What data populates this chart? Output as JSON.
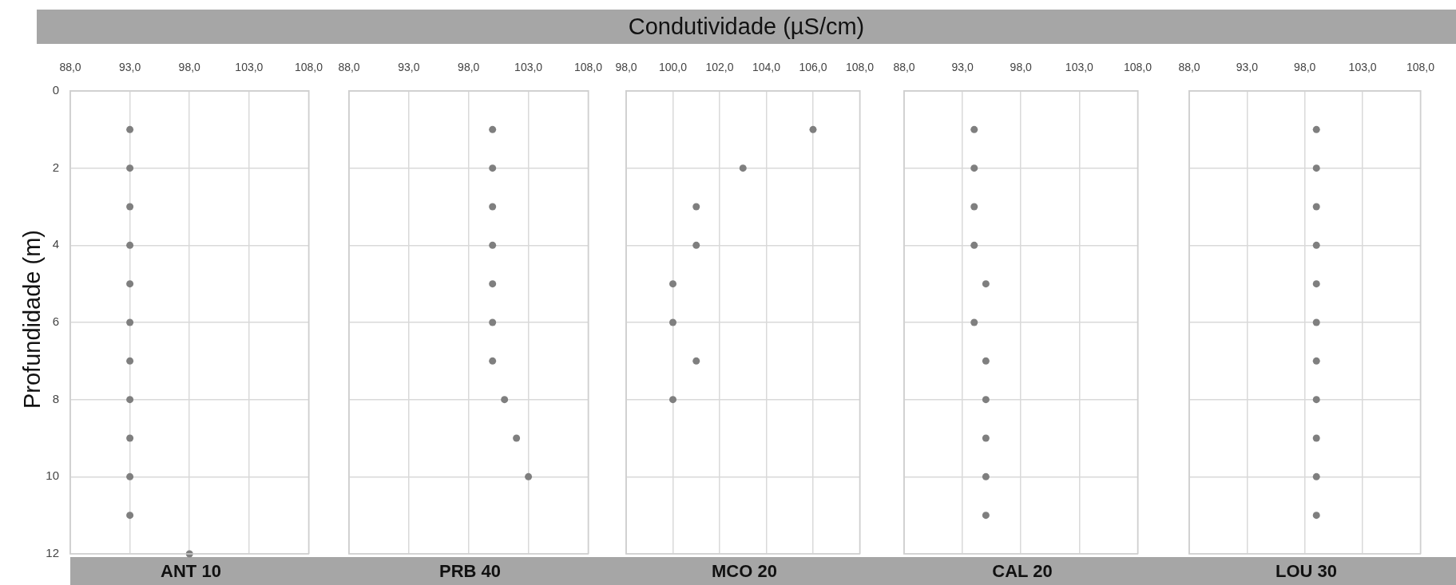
{
  "chart_data": [
    {
      "type": "scatter",
      "ylabel": "Profundidade (m)",
      "xlabel": "ANT 10",
      "series": [
        {
          "color": "#7f7f7f",
          "x": [
            93,
            93,
            93,
            93,
            93,
            93,
            93,
            93,
            93,
            93,
            93,
            98
          ],
          "values": [
            1,
            2,
            3,
            4,
            5,
            6,
            7,
            8,
            9,
            10,
            11,
            12
          ]
        }
      ],
      "xlim": [
        88,
        108
      ],
      "xticks": [
        {
          "value": 88,
          "label": "88,0"
        },
        {
          "value": 93,
          "label": "93,0"
        },
        {
          "value": 98,
          "label": "98,0"
        },
        {
          "value": 103,
          "label": "103,0"
        },
        {
          "value": 108,
          "label": "108,0"
        }
      ],
      "ylim": [
        12,
        0
      ],
      "yticks": [
        0,
        2,
        4,
        6,
        8,
        10,
        12
      ],
      "grid": true,
      "marker": "circle"
    },
    {
      "type": "scatter",
      "xlabel": "PRB 40",
      "series": [
        {
          "color": "#7f7f7f",
          "x": [
            100,
            100,
            100,
            100,
            100,
            100,
            100,
            101,
            102,
            103
          ],
          "values": [
            1,
            2,
            3,
            4,
            5,
            6,
            7,
            8,
            9,
            10
          ]
        }
      ],
      "xlim": [
        88,
        108
      ],
      "xticks": [
        {
          "value": 88,
          "label": "88,0"
        },
        {
          "value": 93,
          "label": "93,0"
        },
        {
          "value": 98,
          "label": "98,0"
        },
        {
          "value": 103,
          "label": "103,0"
        },
        {
          "value": 108,
          "label": "108,0"
        }
      ],
      "ylim": [
        12,
        0
      ],
      "yticks": [
        0,
        2,
        4,
        6,
        8,
        10,
        12
      ],
      "tick_labels": "x",
      "grid": true,
      "marker": "circle"
    },
    {
      "type": "scatter",
      "title": "Condutividade (µS/cm)",
      "xlabel": "MCO 20",
      "series": [
        {
          "color": "#7f7f7f",
          "x": [
            106,
            103,
            101,
            101,
            100,
            100,
            101,
            100
          ],
          "values": [
            1,
            2,
            3,
            4,
            5,
            6,
            7,
            8
          ]
        }
      ],
      "xlim": [
        98,
        108
      ],
      "xticks": [
        {
          "value": 98,
          "label": "98,0"
        },
        {
          "value": 100,
          "label": "100,0"
        },
        {
          "value": 102,
          "label": "102,0"
        },
        {
          "value": 104,
          "label": "104,0"
        },
        {
          "value": 106,
          "label": "106,0"
        },
        {
          "value": 108,
          "label": "108,0"
        }
      ],
      "ylim": [
        12,
        0
      ],
      "yticks": [
        0,
        2,
        4,
        6,
        8,
        10,
        12
      ],
      "tick_labels": "x",
      "grid": true,
      "marker": "circle"
    },
    {
      "type": "scatter",
      "xlabel": "CAL 20",
      "series": [
        {
          "color": "#7f7f7f",
          "x": [
            94,
            94,
            94,
            94,
            95,
            94,
            95,
            95,
            95,
            95,
            95
          ],
          "values": [
            1,
            2,
            3,
            4,
            5,
            6,
            7,
            8,
            9,
            10,
            11
          ]
        }
      ],
      "xlim": [
        88,
        108
      ],
      "xticks": [
        {
          "value": 88,
          "label": "88,0"
        },
        {
          "value": 93,
          "label": "93,0"
        },
        {
          "value": 98,
          "label": "98,0"
        },
        {
          "value": 103,
          "label": "103,0"
        },
        {
          "value": 108,
          "label": "108,0"
        }
      ],
      "ylim": [
        12,
        0
      ],
      "yticks": [
        0,
        2,
        4,
        6,
        8,
        10,
        12
      ],
      "tick_labels": "x",
      "grid": true,
      "marker": "circle"
    },
    {
      "type": "scatter",
      "xlabel": "LOU 30",
      "series": [
        {
          "color": "#7f7f7f",
          "x": [
            99,
            99,
            99,
            99,
            99,
            99,
            99,
            99,
            99,
            99,
            99
          ],
          "values": [
            1,
            2,
            3,
            4,
            5,
            6,
            7,
            8,
            9,
            10,
            11
          ]
        }
      ],
      "xlim": [
        88,
        108
      ],
      "xticks": [
        {
          "value": 88,
          "label": "88,0"
        },
        {
          "value": 93,
          "label": "93,0"
        },
        {
          "value": 98,
          "label": "98,0"
        },
        {
          "value": 103,
          "label": "103,0"
        },
        {
          "value": 108,
          "label": "108,0"
        }
      ],
      "ylim": [
        12,
        0
      ],
      "yticks": [
        0,
        2,
        4,
        6,
        8,
        10,
        12
      ],
      "tick_labels": "x",
      "grid": true,
      "marker": "circle"
    }
  ]
}
